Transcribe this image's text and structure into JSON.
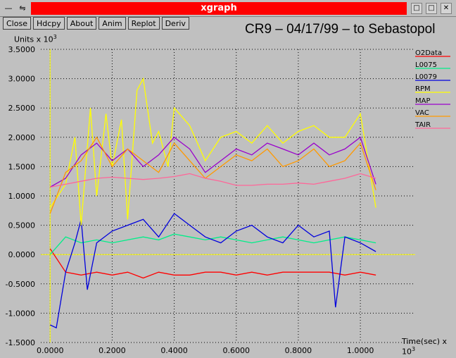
{
  "window": {
    "title": "xgraph",
    "buttons": [
      "Close",
      "Hdcpy",
      "About",
      "Anim",
      "Replot",
      "Deriv"
    ]
  },
  "chart_data": {
    "type": "line",
    "title": "CR9 – 04/17/99 – to Sebastopol",
    "ylabel": "Units x 10",
    "ylabel_exp": "3",
    "xlabel": "Time(sec) x 10",
    "xlabel_exp": "3",
    "xlim": [
      -0.03,
      1.12
    ],
    "ylim": [
      -1.5,
      3.5
    ],
    "xticks": [
      "0.0000",
      "0.2000",
      "0.4000",
      "0.6000",
      "0.8000",
      "1.0000"
    ],
    "xtick_values": [
      0,
      0.2,
      0.4,
      0.6,
      0.8,
      1.0
    ],
    "yticks": [
      "-1.5000",
      "-1.0000",
      "-0.5000",
      "0.0000",
      "0.5000",
      "1.0000",
      "1.5000",
      "2.0000",
      "2.5000",
      "3.0000",
      "3.5000"
    ],
    "ytick_values": [
      -1.5,
      -1.0,
      -0.5,
      0.0,
      0.5,
      1.0,
      1.5,
      2.0,
      2.5,
      3.0,
      3.5
    ],
    "grid": true,
    "legend_position": "right",
    "series": [
      {
        "name": "O2Data",
        "color": "#ff0000",
        "x": [
          0.0,
          0.05,
          0.1,
          0.15,
          0.2,
          0.25,
          0.3,
          0.35,
          0.4,
          0.45,
          0.5,
          0.55,
          0.6,
          0.65,
          0.7,
          0.75,
          0.8,
          0.85,
          0.9,
          0.95,
          1.0,
          1.05
        ],
        "values": [
          0.1,
          -0.3,
          -0.35,
          -0.3,
          -0.35,
          -0.3,
          -0.4,
          -0.3,
          -0.35,
          -0.35,
          -0.3,
          -0.3,
          -0.35,
          -0.3,
          -0.35,
          -0.3,
          -0.3,
          -0.3,
          -0.3,
          -0.35,
          -0.3,
          -0.35
        ]
      },
      {
        "name": "L0075",
        "color": "#00ee88",
        "x": [
          0.0,
          0.05,
          0.1,
          0.15,
          0.2,
          0.25,
          0.3,
          0.35,
          0.4,
          0.45,
          0.5,
          0.55,
          0.6,
          0.65,
          0.7,
          0.75,
          0.8,
          0.85,
          0.9,
          0.95,
          1.0,
          1.05
        ],
        "values": [
          0.0,
          0.3,
          0.2,
          0.25,
          0.2,
          0.25,
          0.3,
          0.25,
          0.35,
          0.3,
          0.25,
          0.3,
          0.25,
          0.2,
          0.25,
          0.3,
          0.25,
          0.2,
          0.25,
          0.3,
          0.25,
          0.2
        ]
      },
      {
        "name": "L0079",
        "color": "#0000dd",
        "x": [
          0.0,
          0.02,
          0.05,
          0.08,
          0.1,
          0.12,
          0.15,
          0.2,
          0.25,
          0.3,
          0.35,
          0.4,
          0.45,
          0.5,
          0.55,
          0.6,
          0.65,
          0.7,
          0.75,
          0.8,
          0.85,
          0.9,
          0.92,
          0.95,
          1.0,
          1.05
        ],
        "values": [
          -1.2,
          -1.25,
          -0.3,
          0.2,
          0.6,
          -0.6,
          0.2,
          0.4,
          0.5,
          0.6,
          0.3,
          0.7,
          0.5,
          0.3,
          0.2,
          0.4,
          0.5,
          0.3,
          0.2,
          0.5,
          0.3,
          0.4,
          -0.9,
          0.3,
          0.2,
          0.05
        ]
      },
      {
        "name": "RPM",
        "color": "#ffff00",
        "x": [
          0.0,
          0.05,
          0.08,
          0.1,
          0.13,
          0.15,
          0.18,
          0.2,
          0.23,
          0.25,
          0.28,
          0.3,
          0.33,
          0.35,
          0.38,
          0.4,
          0.45,
          0.5,
          0.55,
          0.6,
          0.65,
          0.7,
          0.75,
          0.8,
          0.85,
          0.9,
          0.95,
          1.0,
          1.05
        ],
        "values": [
          0.8,
          1.2,
          2.0,
          0.5,
          2.5,
          1.0,
          2.4,
          1.5,
          2.3,
          0.6,
          2.8,
          3.0,
          1.9,
          2.1,
          1.5,
          2.5,
          2.2,
          1.6,
          2.0,
          2.1,
          1.9,
          2.2,
          1.9,
          2.1,
          2.2,
          2.0,
          2.0,
          2.4,
          0.8
        ]
      },
      {
        "name": "MAP",
        "color": "#9900cc",
        "x": [
          0.0,
          0.05,
          0.1,
          0.15,
          0.2,
          0.25,
          0.3,
          0.35,
          0.4,
          0.45,
          0.5,
          0.55,
          0.6,
          0.65,
          0.7,
          0.75,
          0.8,
          0.85,
          0.9,
          0.95,
          1.0,
          1.05
        ],
        "values": [
          1.15,
          1.3,
          1.7,
          1.9,
          1.6,
          1.8,
          1.5,
          1.7,
          2.0,
          1.8,
          1.4,
          1.6,
          1.8,
          1.7,
          1.9,
          1.8,
          1.7,
          1.9,
          1.7,
          1.8,
          2.0,
          1.2
        ]
      },
      {
        "name": "VAC",
        "color": "#ff9900",
        "x": [
          0.0,
          0.05,
          0.1,
          0.15,
          0.2,
          0.25,
          0.3,
          0.35,
          0.4,
          0.45,
          0.5,
          0.55,
          0.6,
          0.65,
          0.7,
          0.75,
          0.8,
          0.85,
          0.9,
          0.95,
          1.0,
          1.05
        ],
        "values": [
          0.7,
          1.4,
          1.6,
          2.0,
          1.5,
          1.8,
          1.6,
          1.4,
          1.9,
          1.6,
          1.3,
          1.5,
          1.7,
          1.6,
          1.8,
          1.5,
          1.6,
          1.8,
          1.5,
          1.6,
          1.9,
          1.1
        ]
      },
      {
        "name": "TAIR",
        "color": "#ff6699",
        "x": [
          0.0,
          0.05,
          0.1,
          0.15,
          0.2,
          0.25,
          0.3,
          0.35,
          0.4,
          0.45,
          0.5,
          0.55,
          0.6,
          0.65,
          0.7,
          0.75,
          0.8,
          0.85,
          0.9,
          0.95,
          1.0,
          1.05
        ],
        "values": [
          1.15,
          1.2,
          1.25,
          1.3,
          1.32,
          1.3,
          1.28,
          1.3,
          1.33,
          1.38,
          1.3,
          1.25,
          1.18,
          1.18,
          1.2,
          1.2,
          1.22,
          1.2,
          1.25,
          1.3,
          1.38,
          1.3
        ]
      }
    ]
  }
}
